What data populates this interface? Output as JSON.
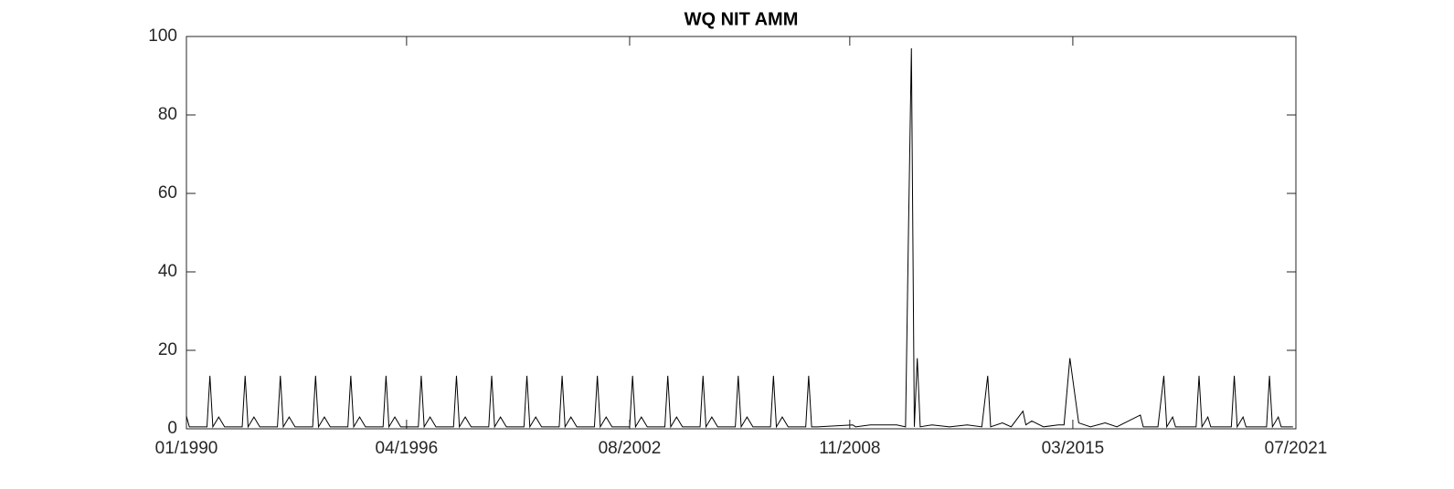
{
  "chart_data": {
    "type": "line",
    "title": "WQ NIT AMM",
    "color": "#000000",
    "x": [
      "1990-01",
      "1990-02",
      "1990-08",
      "1990-09",
      "1990-10",
      "1990-12",
      "1991-02",
      "1991-08",
      "1991-09",
      "1991-10",
      "1991-12",
      "1992-02",
      "1992-08",
      "1992-09",
      "1992-10",
      "1992-12",
      "1993-02",
      "1993-08",
      "1993-09",
      "1993-10",
      "1993-12",
      "1994-02",
      "1994-08",
      "1994-09",
      "1994-10",
      "1994-12",
      "1995-02",
      "1995-08",
      "1995-09",
      "1995-10",
      "1995-12",
      "1996-02",
      "1996-08",
      "1996-09",
      "1996-10",
      "1996-12",
      "1997-02",
      "1997-08",
      "1997-09",
      "1997-10",
      "1997-12",
      "1998-02",
      "1998-08",
      "1998-09",
      "1998-10",
      "1998-12",
      "1999-02",
      "1999-08",
      "1999-09",
      "1999-10",
      "1999-12",
      "2000-02",
      "2000-08",
      "2000-09",
      "2000-10",
      "2000-12",
      "2001-02",
      "2001-08",
      "2001-09",
      "2001-10",
      "2001-12",
      "2002-02",
      "2002-08",
      "2002-09",
      "2002-10",
      "2002-12",
      "2003-02",
      "2003-08",
      "2003-09",
      "2003-10",
      "2003-12",
      "2004-02",
      "2004-08",
      "2004-09",
      "2004-10",
      "2004-12",
      "2005-02",
      "2005-08",
      "2005-09",
      "2005-10",
      "2005-12",
      "2006-02",
      "2006-08",
      "2006-09",
      "2006-10",
      "2006-12",
      "2007-02",
      "2007-08",
      "2007-09",
      "2007-10",
      "2007-12",
      "2008-12",
      "2009-01",
      "2009-06",
      "2010-03",
      "2010-06",
      "2010-07",
      "2010-08",
      "2010-09",
      "2010-10",
      "2010-11",
      "2011-03",
      "2011-09",
      "2012-03",
      "2012-08",
      "2012-10",
      "2012-11",
      "2013-03",
      "2013-06",
      "2013-10",
      "2013-11",
      "2014-01",
      "2014-05",
      "2014-10",
      "2014-12",
      "2015-02",
      "2015-05",
      "2015-09",
      "2016-02",
      "2016-06",
      "2017-02",
      "2017-03",
      "2017-08",
      "2017-10",
      "2017-11",
      "2018-01",
      "2018-02",
      "2018-09",
      "2018-10",
      "2018-11",
      "2019-01",
      "2019-02",
      "2019-09",
      "2019-10",
      "2019-11",
      "2020-01",
      "2020-02",
      "2020-09",
      "2020-10",
      "2020-11",
      "2021-01",
      "2021-02",
      "2021-06"
    ],
    "values": [
      3.2,
      0.5,
      0.5,
      13.5,
      0.5,
      3.0,
      0.5,
      0.5,
      13.5,
      0.5,
      3.0,
      0.5,
      0.5,
      13.5,
      0.5,
      3.0,
      0.5,
      0.5,
      13.5,
      0.5,
      3.0,
      0.5,
      0.5,
      13.5,
      0.5,
      3.0,
      0.5,
      0.5,
      13.5,
      0.5,
      3.0,
      0.5,
      0.5,
      13.5,
      0.5,
      3.0,
      0.5,
      0.5,
      13.5,
      0.5,
      3.0,
      0.5,
      0.5,
      13.5,
      0.5,
      3.0,
      0.5,
      0.5,
      13.5,
      0.5,
      3.0,
      0.5,
      0.5,
      13.5,
      0.5,
      3.0,
      0.5,
      0.5,
      13.5,
      0.5,
      3.0,
      0.5,
      0.5,
      13.5,
      0.5,
      3.0,
      0.5,
      0.5,
      13.5,
      0.5,
      3.0,
      0.5,
      0.5,
      13.5,
      0.5,
      3.0,
      0.5,
      0.5,
      13.5,
      0.5,
      3.0,
      0.5,
      0.5,
      13.5,
      0.5,
      3.0,
      0.5,
      0.5,
      13.5,
      0.5,
      0.5,
      1.0,
      0.5,
      1.0,
      1.0,
      0.5,
      50,
      97,
      0.5,
      18,
      0.5,
      1.0,
      0.5,
      1.0,
      0.5,
      13.5,
      0.5,
      1.5,
      0.5,
      4.5,
      1.0,
      2.0,
      0.5,
      1.0,
      1.0,
      18,
      1.5,
      0.5,
      1.5,
      0.5,
      3.5,
      0.5,
      0.5,
      13.5,
      0.5,
      3.0,
      0.5,
      0.5,
      13.5,
      0.5,
      3.0,
      0.5,
      0.5,
      13.5,
      0.5,
      3.0,
      0.5,
      0.5,
      13.5,
      0.5,
      3.0,
      0.5,
      0.5
    ],
    "xlim": [
      "1990-01",
      "2021-07"
    ],
    "xticks": [
      {
        "value": "1990-01",
        "label": "01/1990"
      },
      {
        "value": "1996-04",
        "label": "04/1996"
      },
      {
        "value": "2002-08",
        "label": "08/2002"
      },
      {
        "value": "2008-11",
        "label": "11/2008"
      },
      {
        "value": "2015-03",
        "label": "03/2015"
      },
      {
        "value": "2021-07",
        "label": "07/2021"
      }
    ],
    "ylim": [
      0,
      100
    ],
    "yticks": [
      0,
      20,
      40,
      60,
      80,
      100
    ]
  }
}
